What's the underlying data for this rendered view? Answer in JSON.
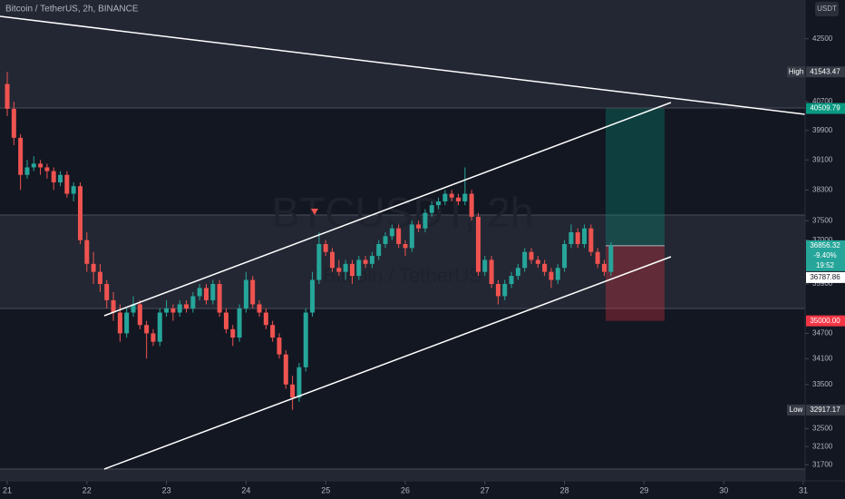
{
  "chart_data": {
    "type": "candlestick",
    "title": "Bitcoin / TetherUS, 2h, BINANCE",
    "watermark": "BTCUSDT, 2h",
    "watermark_subtitle": "Bitcoin / TetherUS",
    "currency": "USDT",
    "up_color": "#26a69a",
    "down_color": "#ef5350",
    "log": true,
    "ylim": [
      31350,
      43650
    ],
    "yticks": [
      42500,
      40700,
      39900,
      39100,
      38300,
      37500,
      37000,
      35900,
      34700,
      34100,
      33500,
      32500,
      32100,
      31700
    ],
    "xlim": [
      -2.2,
      240.6
    ],
    "xticks": [
      {
        "value": 0,
        "label": "21"
      },
      {
        "value": 24,
        "label": "22"
      },
      {
        "value": 48,
        "label": "23"
      },
      {
        "value": 72,
        "label": "24"
      },
      {
        "value": 96,
        "label": "25"
      },
      {
        "value": 120,
        "label": "26"
      },
      {
        "value": 144,
        "label": "27"
      },
      {
        "value": 168,
        "label": "28"
      },
      {
        "value": 192,
        "label": "29"
      },
      {
        "value": 216,
        "label": "30"
      },
      {
        "value": 240,
        "label": "31"
      }
    ],
    "x": [
      0,
      2,
      4,
      6,
      8,
      10,
      12,
      14,
      16,
      18,
      20,
      22,
      24,
      26,
      28,
      30,
      32,
      34,
      36,
      38,
      40,
      42,
      44,
      46,
      48,
      50,
      52,
      54,
      56,
      58,
      60,
      62,
      64,
      66,
      68,
      70,
      72,
      74,
      76,
      78,
      80,
      82,
      84,
      86,
      88,
      90,
      92,
      94,
      96,
      98,
      100,
      102,
      104,
      106,
      108,
      110,
      112,
      114,
      116,
      118,
      120,
      122,
      124,
      126,
      128,
      130,
      132,
      134,
      136,
      138,
      140,
      142,
      144,
      146,
      148,
      150,
      152,
      154,
      156,
      158,
      160,
      162,
      164,
      166,
      168,
      170,
      172,
      174,
      176,
      178,
      180,
      182
    ],
    "ohlc": [
      [
        41200,
        41543.47,
        40300,
        40500
      ],
      [
        40500,
        40700,
        39500,
        39700
      ],
      [
        39700,
        39800,
        38300,
        38700
      ],
      [
        38700,
        39100,
        38600,
        38900
      ],
      [
        38900,
        39200,
        38800,
        39000
      ],
      [
        39000,
        39100,
        38700,
        38900
      ],
      [
        38900,
        39000,
        38600,
        38800
      ],
      [
        38800,
        38900,
        38300,
        38500
      ],
      [
        38500,
        38800,
        38400,
        38700
      ],
      [
        38700,
        38800,
        38100,
        38200
      ],
      [
        38200,
        38500,
        38000,
        38400
      ],
      [
        38400,
        38500,
        36900,
        37000
      ],
      [
        37000,
        37200,
        36200,
        36400
      ],
      [
        36400,
        36700,
        35900,
        36200
      ],
      [
        36200,
        36400,
        35700,
        35900
      ],
      [
        35900,
        36000,
        35300,
        35500
      ],
      [
        35500,
        35700,
        35000,
        35200
      ],
      [
        35200,
        35400,
        34500,
        34700
      ],
      [
        34700,
        35300,
        34600,
        35200
      ],
      [
        35200,
        35600,
        35100,
        35400
      ],
      [
        35400,
        35500,
        34800,
        34900
      ],
      [
        34900,
        35000,
        34100,
        34700
      ],
      [
        34700,
        34800,
        34400,
        34500
      ],
      [
        34500,
        35300,
        34400,
        35200
      ],
      [
        35200,
        35500,
        35100,
        35300
      ],
      [
        35300,
        35400,
        35000,
        35200
      ],
      [
        35200,
        35500,
        35100,
        35400
      ],
      [
        35400,
        35500,
        35200,
        35300
      ],
      [
        35300,
        35700,
        35200,
        35600
      ],
      [
        35600,
        35900,
        35500,
        35800
      ],
      [
        35800,
        35900,
        35400,
        35500
      ],
      [
        35500,
        36000,
        35400,
        35900
      ],
      [
        35900,
        36000,
        35100,
        35200
      ],
      [
        35200,
        35300,
        34700,
        34800
      ],
      [
        34800,
        34900,
        34400,
        34600
      ],
      [
        34600,
        35400,
        34500,
        35300
      ],
      [
        35300,
        36200,
        35200,
        36000
      ],
      [
        36000,
        36100,
        35300,
        35400
      ],
      [
        35400,
        35500,
        35100,
        35200
      ],
      [
        35200,
        35300,
        34800,
        34900
      ],
      [
        34900,
        35000,
        34500,
        34600
      ],
      [
        34600,
        34700,
        34100,
        34200
      ],
      [
        34200,
        34300,
        33400,
        33500
      ],
      [
        33500,
        33700,
        32917.17,
        33200
      ],
      [
        33200,
        34000,
        33100,
        33900
      ],
      [
        33900,
        35300,
        33800,
        35200
      ],
      [
        35200,
        36200,
        35100,
        36000
      ],
      [
        36000,
        37200,
        35900,
        36900
      ],
      [
        36900,
        37000,
        36600,
        36700
      ],
      [
        36700,
        36800,
        36200,
        36300
      ],
      [
        36300,
        36500,
        36100,
        36200
      ],
      [
        36200,
        36500,
        36000,
        36400
      ],
      [
        36400,
        36500,
        35900,
        36100
      ],
      [
        36100,
        36600,
        36000,
        36500
      ],
      [
        36500,
        36600,
        36300,
        36400
      ],
      [
        36400,
        36700,
        36300,
        36600
      ],
      [
        36600,
        37000,
        36500,
        36900
      ],
      [
        36900,
        37200,
        36800,
        37100
      ],
      [
        37100,
        37400,
        37000,
        37300
      ],
      [
        37300,
        37400,
        36800,
        36900
      ],
      [
        36900,
        37000,
        36600,
        36800
      ],
      [
        36800,
        37500,
        36700,
        37400
      ],
      [
        37400,
        37500,
        37200,
        37300
      ],
      [
        37300,
        37800,
        37200,
        37700
      ],
      [
        37700,
        38000,
        37600,
        37900
      ],
      [
        37900,
        38100,
        37800,
        38000
      ],
      [
        38000,
        38300,
        37900,
        38200
      ],
      [
        38200,
        38300,
        38000,
        38100
      ],
      [
        38100,
        38200,
        37900,
        38000
      ],
      [
        38000,
        38900,
        37900,
        38200
      ],
      [
        38200,
        38300,
        37500,
        37600
      ],
      [
        37600,
        37700,
        36100,
        36200
      ],
      [
        36200,
        36600,
        36100,
        36500
      ],
      [
        36500,
        36600,
        35800,
        35900
      ],
      [
        35900,
        36000,
        35400,
        35600
      ],
      [
        35600,
        36000,
        35500,
        35900
      ],
      [
        35900,
        36200,
        35800,
        36100
      ],
      [
        36100,
        36400,
        36000,
        36300
      ],
      [
        36300,
        36800,
        36200,
        36700
      ],
      [
        36700,
        36800,
        36400,
        36500
      ],
      [
        36500,
        36600,
        36300,
        36400
      ],
      [
        36400,
        36500,
        36100,
        36200
      ],
      [
        36200,
        36300,
        35800,
        36000
      ],
      [
        36000,
        36400,
        35900,
        36300
      ],
      [
        36300,
        37000,
        36200,
        36900
      ],
      [
        36900,
        37400,
        36800,
        37200
      ],
      [
        37200,
        37300,
        36800,
        36900
      ],
      [
        36900,
        37400,
        36800,
        37300
      ],
      [
        37300,
        37400,
        36600,
        36700
      ],
      [
        36700,
        36800,
        36300,
        36400
      ],
      [
        36400,
        36500,
        36100,
        36200
      ],
      [
        36200,
        36950,
        36100,
        36856.32
      ]
    ],
    "price_labels": [
      {
        "text": "High",
        "value": 41543.47,
        "color": "#363a45"
      },
      {
        "value": 40509.79,
        "color": "#089981"
      },
      {
        "value": 36856.32,
        "color": "#26a69a",
        "change": "-9.40%",
        "countdown": "19:52"
      },
      {
        "value": 36787.86,
        "color": "#ffffff"
      },
      {
        "value": 35000,
        "label": "35000.00",
        "color": "#f23645"
      },
      {
        "text": "Low",
        "value": 32917.17,
        "color": "#363a45"
      }
    ],
    "position": {
      "target": 40509.79,
      "entry": 36856.32,
      "stop": 35000
    }
  }
}
